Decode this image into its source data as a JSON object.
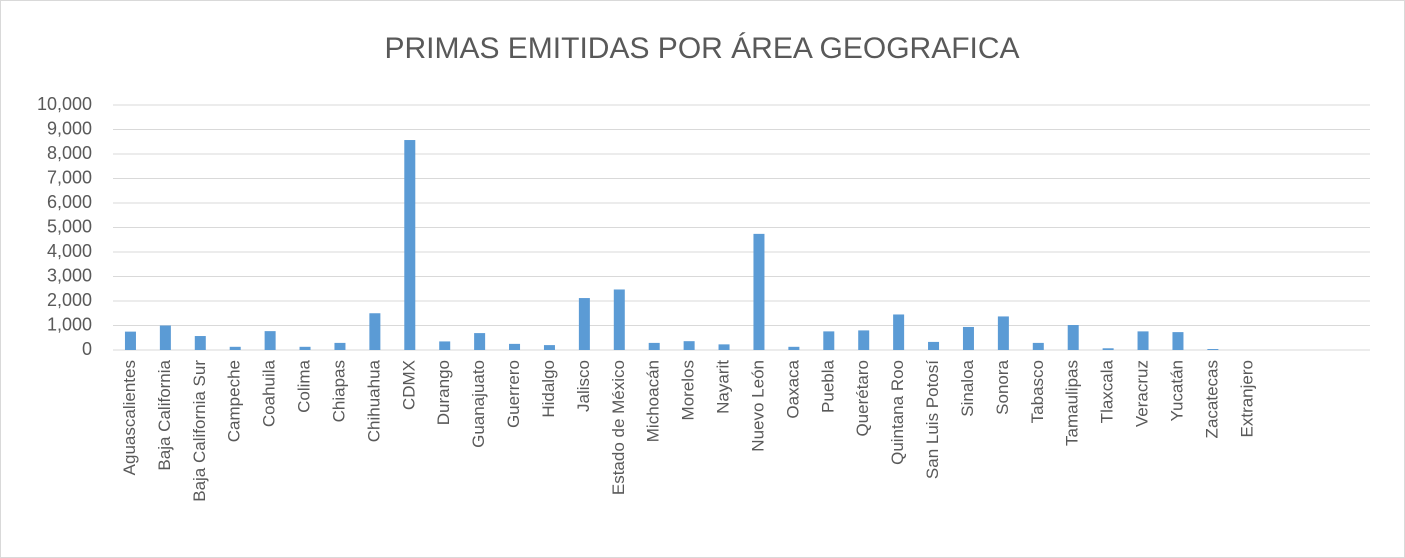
{
  "chart_data": {
    "type": "bar",
    "title": "PRIMAS EMITIDAS POR ÁREA GEOGRAFICA",
    "categories": [
      "Aguascalientes",
      "Baja California",
      "Baja California Sur",
      "Campeche",
      "Coahuila",
      "Colima",
      "Chiapas",
      "Chihuahua",
      "CDMX",
      "Durango",
      "Guanajuato",
      "Guerrero",
      "Hidalgo",
      "Jalisco",
      "Estado de México",
      "Michoacán",
      "Morelos",
      "Nayarit",
      "Nuevo León",
      "Oaxaca",
      "Puebla",
      "Querétaro",
      "Quintana Roo",
      "San Luis Potosí",
      "Sinaloa",
      "Sonora",
      "Tabasco",
      "Tamaulipas",
      "Tlaxcala",
      "Veracruz",
      "Yucatán",
      "Zacatecas",
      "Extranjero",
      null,
      null,
      null
    ],
    "values": [
      750,
      1000,
      570,
      130,
      770,
      130,
      290,
      1500,
      8570,
      350,
      690,
      250,
      200,
      2120,
      2470,
      290,
      360,
      230,
      4740,
      130,
      760,
      800,
      1450,
      330,
      940,
      1370,
      290,
      1020,
      70,
      760,
      730,
      40,
      0,
      null,
      null,
      null
    ],
    "color": "#5b9bd5",
    "ylim": [
      0,
      10000
    ],
    "yticks": [
      0,
      {
        "value": 1000,
        "label": "1,000"
      },
      {
        "value": 2000,
        "label": "2,000"
      },
      {
        "value": 3000,
        "label": "3,000"
      },
      {
        "value": 4000,
        "label": "4,000"
      },
      {
        "value": 5000,
        "label": "5,000"
      },
      {
        "value": 6000,
        "label": "6,000"
      },
      {
        "value": 7000,
        "label": "7,000"
      },
      {
        "value": 8000,
        "label": "8,000"
      },
      {
        "value": 9000,
        "label": "9,000"
      },
      {
        "value": 10000,
        "label": "10,000"
      }
    ],
    "grid": true
  }
}
